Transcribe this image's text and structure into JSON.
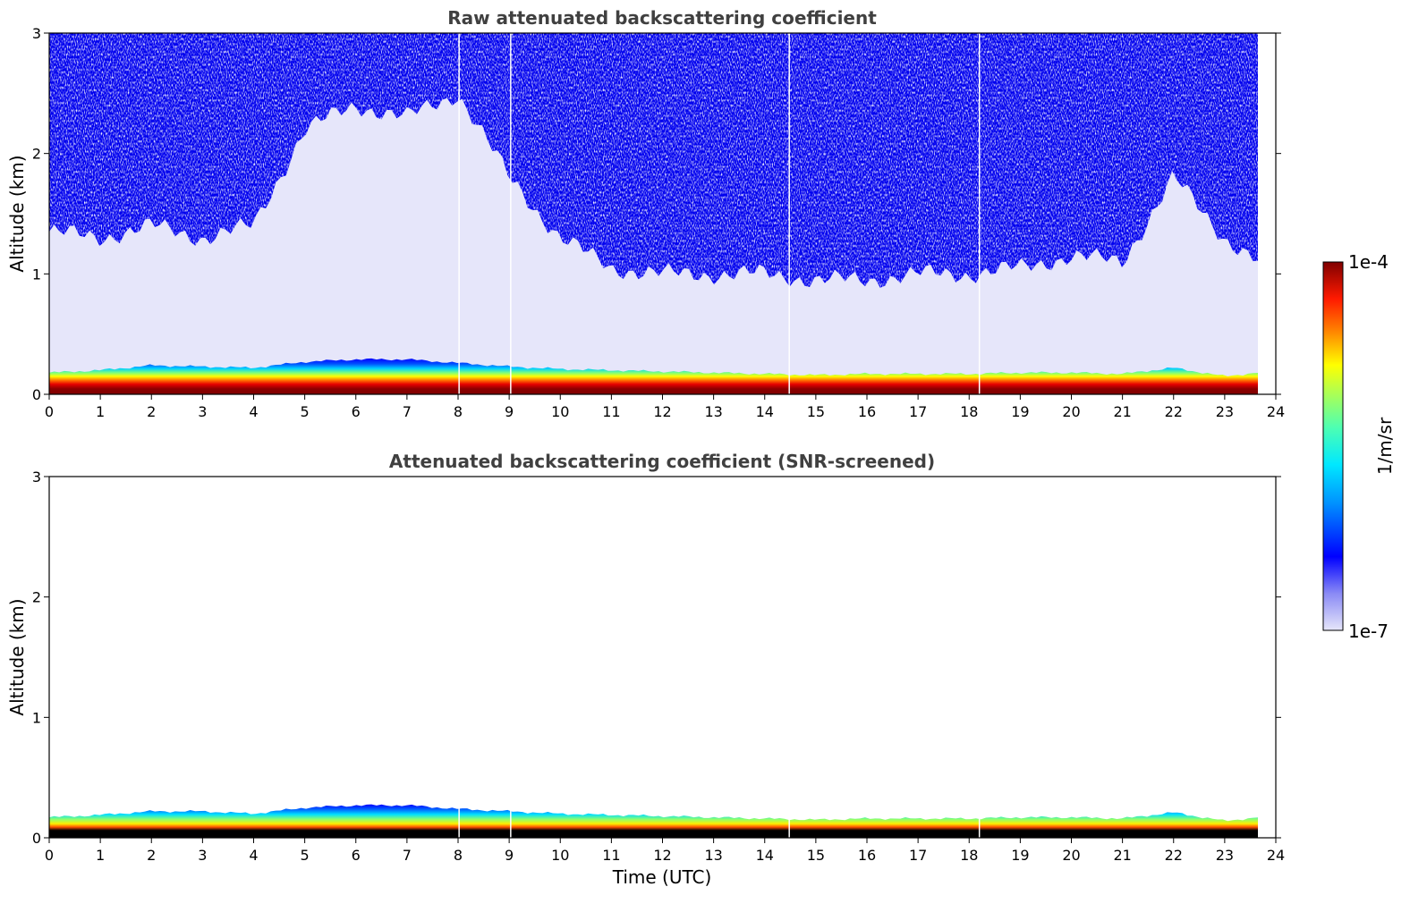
{
  "chart_data": [
    {
      "type": "heatmap",
      "title": "Raw attenuated backscattering coefficient",
      "xlabel": "",
      "ylabel": "Altitude (km)",
      "xlim": [
        0,
        24
      ],
      "ylim": [
        0,
        3
      ],
      "xticks": [
        "0",
        "1",
        "2",
        "3",
        "4",
        "5",
        "6",
        "7",
        "8",
        "9",
        "10",
        "11",
        "12",
        "13",
        "14",
        "15",
        "16",
        "17",
        "18",
        "19",
        "20",
        "21",
        "22",
        "23",
        "24"
      ],
      "yticks": [
        "0",
        "1",
        "2",
        "3"
      ],
      "data_end_time_utc": 23.65,
      "missing_profiles_utc": [
        8.02,
        9.03,
        14.48,
        18.2
      ],
      "boundary_layer_top_km": {
        "time_utc": [
          0,
          1,
          2,
          3,
          4,
          5,
          6,
          7,
          8,
          9,
          10,
          11,
          12,
          13,
          14,
          15,
          16,
          17,
          18,
          19,
          20,
          21,
          22,
          23,
          23.65
        ],
        "altitude_km": [
          0.18,
          0.2,
          0.24,
          0.23,
          0.22,
          0.27,
          0.29,
          0.29,
          0.26,
          0.23,
          0.21,
          0.2,
          0.19,
          0.18,
          0.17,
          0.16,
          0.17,
          0.17,
          0.17,
          0.18,
          0.18,
          0.17,
          0.22,
          0.15,
          0.18
        ]
      },
      "noise_floor_top_km": {
        "time_utc": [
          0,
          1,
          2,
          3,
          4,
          5,
          6,
          7,
          8,
          9,
          10,
          11,
          12,
          13,
          14,
          15,
          16,
          17,
          18,
          19,
          20,
          21,
          22,
          23,
          23.65
        ],
        "altitude_km": [
          1.35,
          1.3,
          1.4,
          1.3,
          1.4,
          2.2,
          2.4,
          2.3,
          2.5,
          1.8,
          1.3,
          1.05,
          1.0,
          1.0,
          1.0,
          0.95,
          0.95,
          1.0,
          1.0,
          1.05,
          1.15,
          1.1,
          1.8,
          1.3,
          1.1
        ]
      }
    },
    {
      "type": "heatmap",
      "title": "Attenuated backscattering coefficient (SNR-screened)",
      "xlabel": "Time (UTC)",
      "ylabel": "Altitude (km)",
      "xlim": [
        0,
        24
      ],
      "ylim": [
        0,
        3
      ],
      "xticks": [
        "0",
        "1",
        "2",
        "3",
        "4",
        "5",
        "6",
        "7",
        "8",
        "9",
        "10",
        "11",
        "12",
        "13",
        "14",
        "15",
        "16",
        "17",
        "18",
        "19",
        "20",
        "21",
        "22",
        "23",
        "24"
      ],
      "yticks": [
        "0",
        "1",
        "2",
        "3"
      ],
      "data_end_time_utc": 23.65,
      "missing_profiles_utc": [
        8.02,
        9.03,
        14.48,
        18.2
      ],
      "boundary_layer_top_km": {
        "time_utc": [
          0,
          1,
          2,
          3,
          4,
          5,
          6,
          7,
          8,
          9,
          10,
          11,
          12,
          13,
          14,
          15,
          16,
          17,
          18,
          19,
          20,
          21,
          22,
          23,
          23.65
        ],
        "altitude_km": [
          0.17,
          0.19,
          0.22,
          0.22,
          0.2,
          0.25,
          0.27,
          0.27,
          0.24,
          0.22,
          0.2,
          0.19,
          0.18,
          0.17,
          0.16,
          0.15,
          0.16,
          0.16,
          0.16,
          0.17,
          0.17,
          0.16,
          0.21,
          0.14,
          0.17
        ]
      }
    }
  ],
  "colorbar": {
    "label": "1/m/sr",
    "max_label": "1e-4",
    "min_label": "1e-7",
    "colormap": "jet",
    "low_color": "#e6e6fa"
  }
}
